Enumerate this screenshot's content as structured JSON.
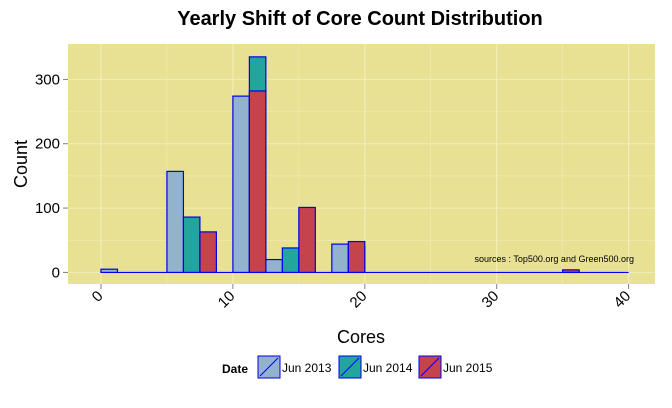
{
  "colors": {
    "panel": "#e8e193",
    "grid": "#f2eebd",
    "bar_outline": "#0000ee",
    "tick": "#7f7f7f"
  },
  "chart_data": {
    "type": "bar",
    "title": "Yearly Shift of Core Count Distribution",
    "xlabel": "Cores",
    "ylabel": "Count",
    "xlim": [
      -2.5,
      42
    ],
    "ylim": [
      -18,
      355
    ],
    "x_ticks": [
      0,
      10,
      20,
      30,
      40
    ],
    "x_tick_labels": [
      "0",
      "10",
      "20",
      "30",
      "40"
    ],
    "y_ticks": [
      0,
      100,
      200,
      300
    ],
    "y_tick_labels": [
      "0",
      "100",
      "200",
      "300"
    ],
    "bin_width": 1.25,
    "legend": {
      "title": "Date",
      "position": "bottom"
    },
    "annotation": "sources :  Top500.org and Green500.org",
    "series": [
      {
        "name": "Jun 2013",
        "color": "#93b2cb",
        "points": [
          [
            0,
            5
          ],
          [
            5,
            157
          ],
          [
            10,
            274
          ],
          [
            12.5,
            20
          ],
          [
            17.5,
            44
          ],
          [
            35,
            1
          ]
        ]
      },
      {
        "name": "Jun 2014",
        "color": "#21a59c",
        "points": [
          [
            6.25,
            86
          ],
          [
            11.25,
            335
          ],
          [
            13.75,
            38
          ],
          [
            18.75,
            40
          ]
        ]
      },
      {
        "name": "Jun 2015",
        "color": "#c5434b",
        "points": [
          [
            7.5,
            63
          ],
          [
            11.25,
            282
          ],
          [
            15,
            101
          ],
          [
            18.75,
            48
          ],
          [
            35,
            4
          ]
        ]
      }
    ]
  }
}
